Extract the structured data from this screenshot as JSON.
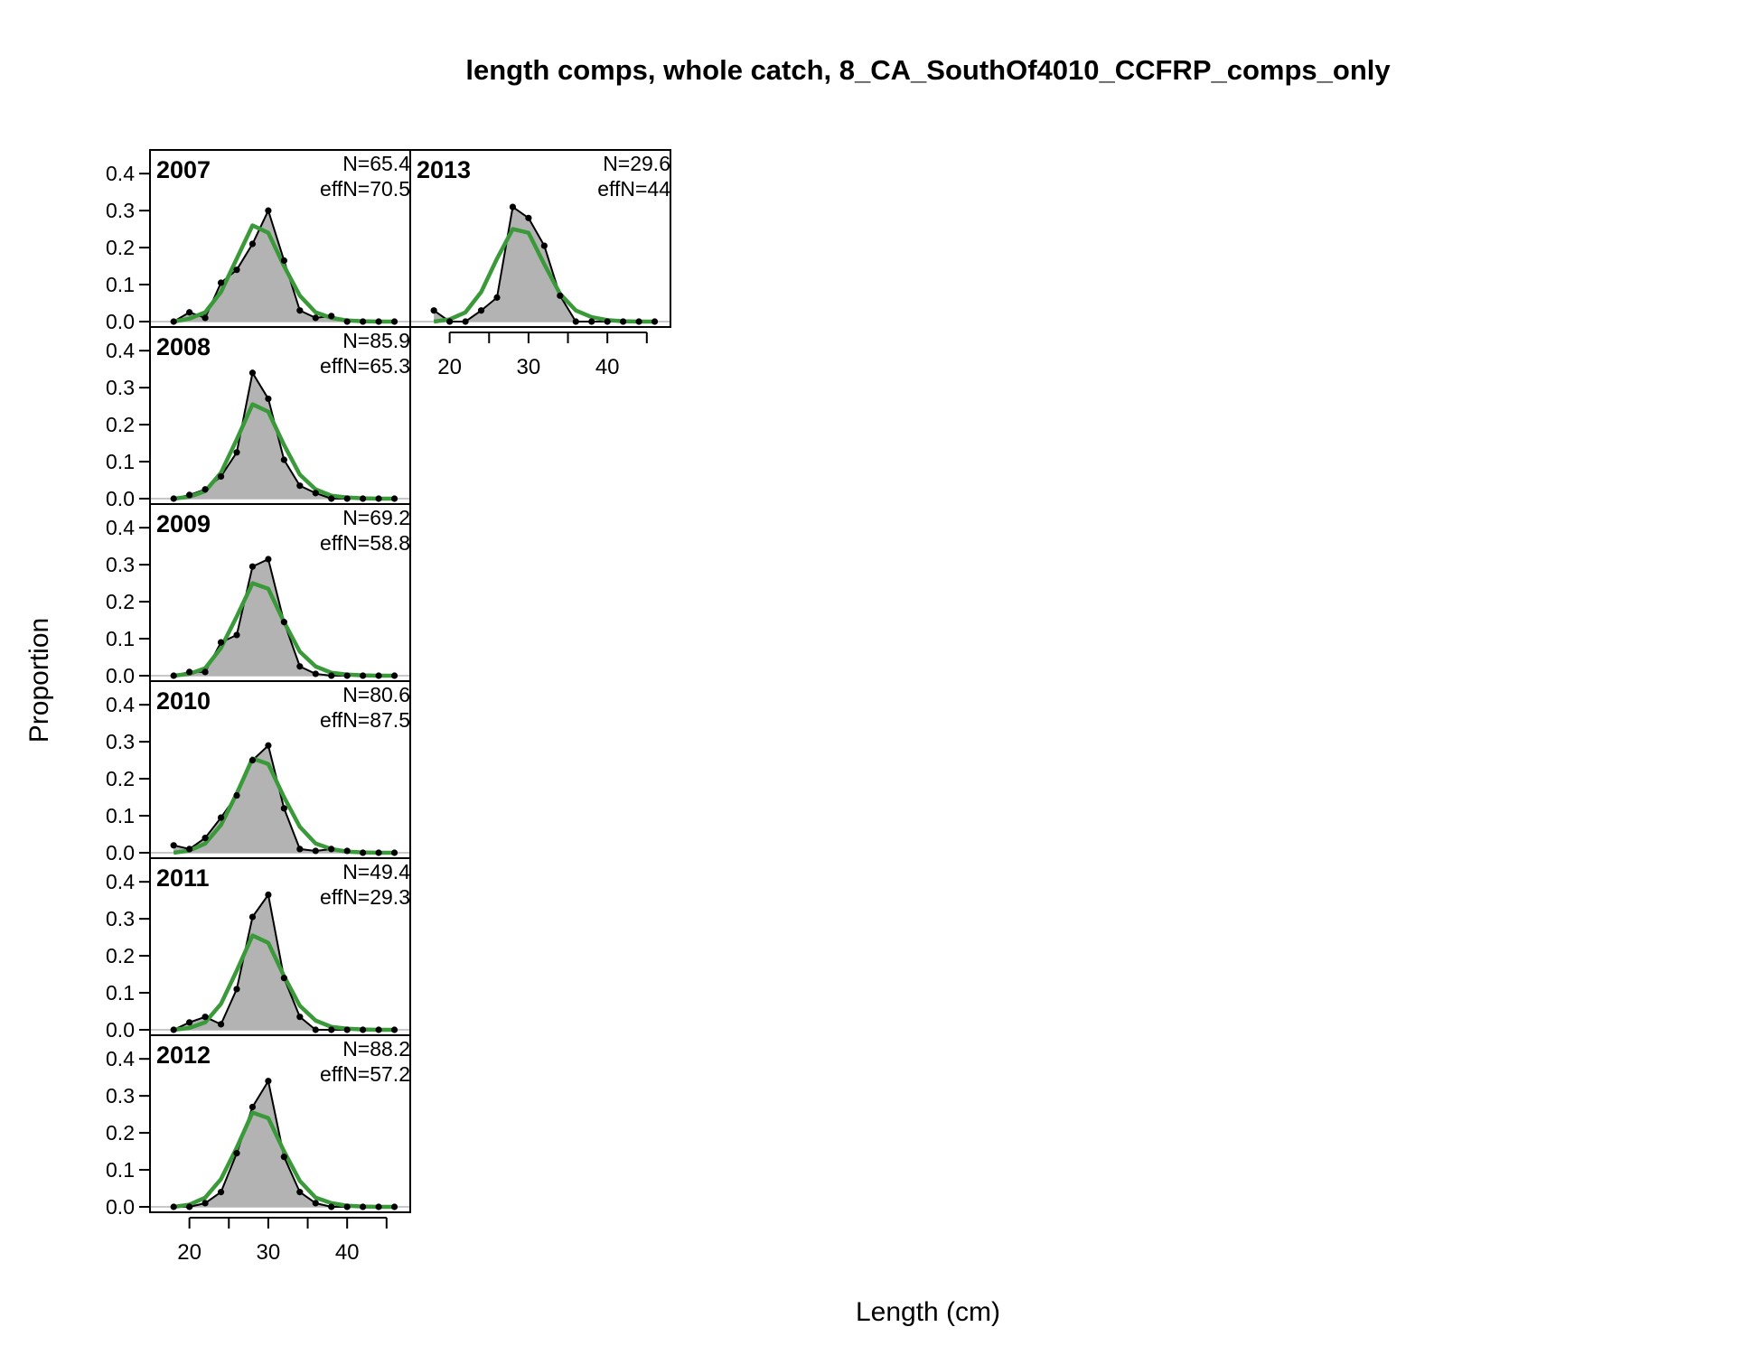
{
  "chart_data": {
    "type": "area",
    "title": "length comps, whole catch, 8_CA_SouthOf4010_CCFRP_comps_only",
    "xlabel": "Length (cm)",
    "ylabel": "Proportion",
    "xlim": [
      15,
      48
    ],
    "ylim": [
      0,
      0.42
    ],
    "x_ticks": [
      20,
      30,
      40
    ],
    "y_ticks": [
      "0.0",
      "0.1",
      "0.2",
      "0.3",
      "0.4"
    ],
    "x": [
      18,
      20,
      22,
      24,
      26,
      28,
      30,
      32,
      34,
      36,
      38,
      40,
      42,
      44,
      46
    ],
    "colors": {
      "observed_fill": "#b3b3b3",
      "observed_line": "#000000",
      "expected_line": "#3a9a3a",
      "panel_border": "#000000"
    },
    "panels": [
      {
        "year": "2007",
        "n_label": "N=65.4",
        "effn_label": "effN=70.5",
        "observed": [
          0.0,
          0.025,
          0.01,
          0.105,
          0.14,
          0.21,
          0.3,
          0.165,
          0.03,
          0.01,
          0.015,
          0.0,
          0.0,
          0.0,
          0.0
        ],
        "expected": [
          0.0,
          0.008,
          0.025,
          0.08,
          0.17,
          0.26,
          0.24,
          0.15,
          0.07,
          0.025,
          0.01,
          0.003,
          0.001,
          0.0,
          0.0
        ]
      },
      {
        "year": "2008",
        "n_label": "N=85.9",
        "effn_label": "effN=65.3",
        "observed": [
          0.0,
          0.01,
          0.025,
          0.06,
          0.125,
          0.34,
          0.27,
          0.105,
          0.035,
          0.015,
          0.0,
          0.0,
          0.0,
          0.0,
          0.0
        ],
        "expected": [
          0.0,
          0.005,
          0.02,
          0.07,
          0.16,
          0.255,
          0.235,
          0.145,
          0.065,
          0.025,
          0.008,
          0.003,
          0.001,
          0.0,
          0.0
        ]
      },
      {
        "year": "2009",
        "n_label": "N=69.2",
        "effn_label": "effN=58.8",
        "observed": [
          0.0,
          0.01,
          0.01,
          0.09,
          0.11,
          0.295,
          0.315,
          0.145,
          0.025,
          0.005,
          0.0,
          0.0,
          0.0,
          0.0,
          0.0
        ],
        "expected": [
          0.0,
          0.005,
          0.02,
          0.075,
          0.16,
          0.25,
          0.235,
          0.145,
          0.065,
          0.025,
          0.008,
          0.003,
          0.001,
          0.0,
          0.0
        ]
      },
      {
        "year": "2010",
        "n_label": "N=80.6",
        "effn_label": "effN=87.5",
        "observed": [
          0.02,
          0.01,
          0.04,
          0.095,
          0.155,
          0.25,
          0.29,
          0.12,
          0.01,
          0.005,
          0.01,
          0.005,
          0.0,
          0.0,
          0.0
        ],
        "expected": [
          0.0,
          0.006,
          0.025,
          0.075,
          0.16,
          0.255,
          0.24,
          0.15,
          0.07,
          0.025,
          0.01,
          0.003,
          0.001,
          0.0,
          0.0
        ]
      },
      {
        "year": "2011",
        "n_label": "N=49.4",
        "effn_label": "effN=29.3",
        "observed": [
          0.0,
          0.02,
          0.035,
          0.015,
          0.11,
          0.305,
          0.365,
          0.14,
          0.035,
          0.0,
          0.0,
          0.0,
          0.0,
          0.0,
          0.0
        ],
        "expected": [
          0.0,
          0.005,
          0.02,
          0.07,
          0.16,
          0.255,
          0.235,
          0.145,
          0.065,
          0.025,
          0.008,
          0.003,
          0.001,
          0.0,
          0.0
        ]
      },
      {
        "year": "2012",
        "n_label": "N=88.2",
        "effn_label": "effN=57.2",
        "observed": [
          0.0,
          0.0,
          0.01,
          0.04,
          0.145,
          0.27,
          0.34,
          0.135,
          0.04,
          0.01,
          0.0,
          0.0,
          0.0,
          0.0,
          0.0
        ],
        "expected": [
          0.0,
          0.006,
          0.025,
          0.075,
          0.16,
          0.255,
          0.24,
          0.15,
          0.07,
          0.025,
          0.01,
          0.003,
          0.001,
          0.0,
          0.0
        ]
      },
      {
        "year": "2013",
        "n_label": "N=29.6",
        "effn_label": "effN=44",
        "observed": [
          0.03,
          0.0,
          0.0,
          0.03,
          0.065,
          0.31,
          0.28,
          0.205,
          0.07,
          0.0,
          0.0,
          0.0,
          0.0,
          0.0,
          0.0
        ],
        "expected": [
          0.0,
          0.006,
          0.025,
          0.08,
          0.17,
          0.25,
          0.24,
          0.155,
          0.075,
          0.03,
          0.012,
          0.004,
          0.001,
          0.0,
          0.0
        ]
      }
    ]
  }
}
